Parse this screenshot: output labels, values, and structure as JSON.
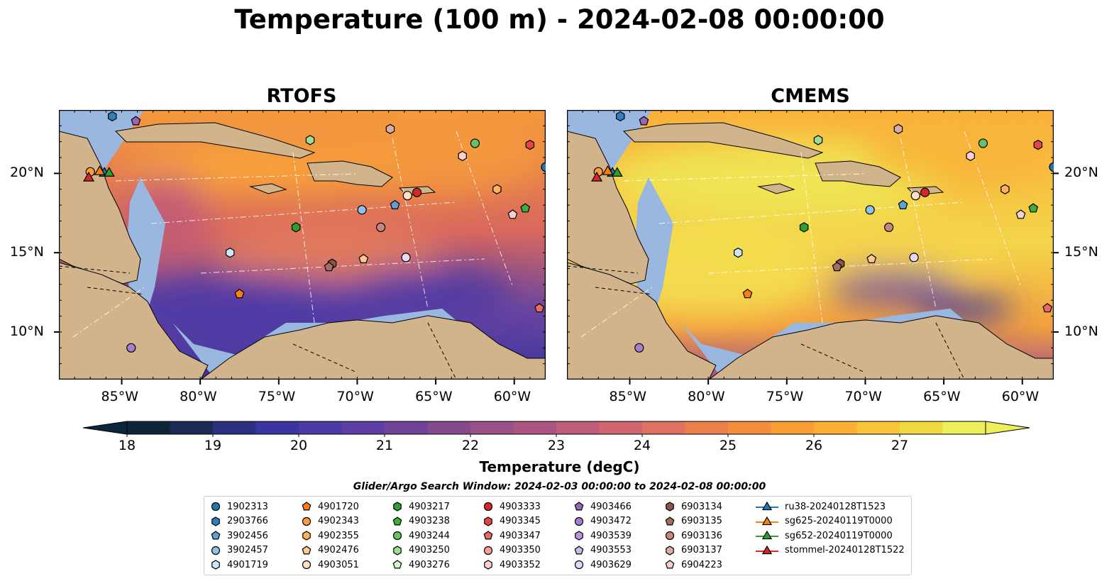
{
  "title": "Temperature (100 m) - 2024-02-08 00:00:00",
  "panels": [
    {
      "title": "RTOFS",
      "palette": "warm"
    },
    {
      "title": "CMEMS",
      "palette": "hot"
    }
  ],
  "axes": {
    "lon_ticks": [
      "85°W",
      "80°W",
      "75°W",
      "70°W",
      "65°W",
      "60°W"
    ],
    "lat_ticks": [
      "20°N",
      "15°N",
      "10°N"
    ]
  },
  "colorbar": {
    "label": "Temperature (degC)",
    "ticks": [
      "18",
      "19",
      "20",
      "21",
      "22",
      "23",
      "24",
      "25",
      "26",
      "27"
    ],
    "colors": [
      "#0d2538",
      "#1b2a52",
      "#2a2f80",
      "#3a35a0",
      "#4b3aa6",
      "#5d3ea5",
      "#704398",
      "#844a8e",
      "#985087",
      "#ab5680",
      "#be5d78",
      "#d06670",
      "#e07060",
      "#ec7e4c",
      "#f58d3c",
      "#f99d35",
      "#fbb035",
      "#f8c43a",
      "#f0d943",
      "#eef05a"
    ]
  },
  "legend": {
    "title": "Glider/Argo Search Window: 2024-02-03 00:00:00 to 2024-02-08 00:00:00",
    "columns": [
      [
        {
          "label": "1902313",
          "marker": "circle",
          "color": "#1f77b4"
        },
        {
          "label": "2903766",
          "marker": "hexagon",
          "color": "#2f7fbf"
        },
        {
          "label": "3902456",
          "marker": "pentagon",
          "color": "#5aa2d8"
        },
        {
          "label": "3902457",
          "marker": "circle",
          "color": "#8cc2ec"
        },
        {
          "label": "4901719",
          "marker": "hexagon",
          "color": "#cde6fb"
        }
      ],
      [
        {
          "label": "4901720",
          "marker": "pentagon",
          "color": "#ff7f0e"
        },
        {
          "label": "4902343",
          "marker": "circle",
          "color": "#ff9a40"
        },
        {
          "label": "4902355",
          "marker": "hexagon",
          "color": "#ffb260"
        },
        {
          "label": "4902476",
          "marker": "pentagon",
          "color": "#ffc891"
        },
        {
          "label": "4903051",
          "marker": "circle",
          "color": "#ffe0c4"
        }
      ],
      [
        {
          "label": "4903217",
          "marker": "hexagon",
          "color": "#2ca02c"
        },
        {
          "label": "4903238",
          "marker": "pentagon",
          "color": "#3fae3f"
        },
        {
          "label": "4903244",
          "marker": "circle",
          "color": "#66c266"
        },
        {
          "label": "4903250",
          "marker": "hexagon",
          "color": "#9bdc96"
        },
        {
          "label": "4903276",
          "marker": "pentagon",
          "color": "#d2f3cf"
        }
      ],
      [
        {
          "label": "4903333",
          "marker": "circle",
          "color": "#d62728"
        },
        {
          "label": "4903345",
          "marker": "hexagon",
          "color": "#e04848"
        },
        {
          "label": "4903347",
          "marker": "pentagon",
          "color": "#ea6868"
        },
        {
          "label": "4903350",
          "marker": "circle",
          "color": "#f5a09d"
        },
        {
          "label": "4903352",
          "marker": "hexagon",
          "color": "#fbd1cf"
        }
      ],
      [
        {
          "label": "4903466",
          "marker": "pentagon",
          "color": "#9467bd"
        },
        {
          "label": "4903472",
          "marker": "circle",
          "color": "#a57fcc"
        },
        {
          "label": "4903539",
          "marker": "hexagon",
          "color": "#b798db"
        },
        {
          "label": "4903553",
          "marker": "pentagon",
          "color": "#cfb9e9"
        },
        {
          "label": "4903629",
          "marker": "circle",
          "color": "#e6d7f6"
        }
      ],
      [
        {
          "label": "6903134",
          "marker": "hexagon",
          "color": "#8c564b"
        },
        {
          "label": "6903135",
          "marker": "pentagon",
          "color": "#a66e63"
        },
        {
          "label": "6903136",
          "marker": "circle",
          "color": "#c08a80"
        },
        {
          "label": "6903137",
          "marker": "hexagon",
          "color": "#d8aca3"
        },
        {
          "label": "6904223",
          "marker": "pentagon",
          "color": "#f1d3ce"
        }
      ],
      [
        {
          "label": "ru38-20240128T1523",
          "marker": "triangle-line",
          "color": "#1f77b4"
        },
        {
          "label": "sg625-20240119T0000",
          "marker": "triangle-line",
          "color": "#ff7f0e"
        },
        {
          "label": "sg652-20240119T0000",
          "marker": "triangle-line",
          "color": "#2ca02c"
        },
        {
          "label": "stommel-20240128T1522",
          "marker": "triangle-line",
          "color": "#d62728"
        }
      ]
    ]
  },
  "chart_data": {
    "type": "heatmap",
    "title": "Temperature (100 m) - 2024-02-08 00:00:00",
    "subplots": [
      "RTOFS",
      "CMEMS"
    ],
    "xlim": [
      -89,
      -58
    ],
    "ylim": [
      7,
      24
    ],
    "colorbar_range": [
      18,
      27
    ],
    "colorbar_label": "Temperature (degC)",
    "land_color": "#d2b48c",
    "shelf_color": "#9ab7e0",
    "markers": [
      {
        "id": "1902313",
        "lon": -58.0,
        "lat": 20.4
      },
      {
        "id": "2903766",
        "lon": -85.6,
        "lat": 23.6
      },
      {
        "id": "3902456",
        "lon": -67.6,
        "lat": 18.0
      },
      {
        "id": "3902457",
        "lon": -69.7,
        "lat": 17.7
      },
      {
        "id": "4901719",
        "lon": -78.1,
        "lat": 15.0
      },
      {
        "id": "4901720",
        "lon": -77.5,
        "lat": 12.4
      },
      {
        "id": "4902343",
        "lon": -87.0,
        "lat": 20.1
      },
      {
        "id": "4903051",
        "lon": -66.8,
        "lat": 18.6
      },
      {
        "id": "4903217",
        "lon": -73.9,
        "lat": 16.6
      },
      {
        "id": "4903238",
        "lon": -59.3,
        "lat": 17.8
      },
      {
        "id": "4903244",
        "lon": -62.5,
        "lat": 21.9
      },
      {
        "id": "4903250",
        "lon": -73.0,
        "lat": 22.1
      },
      {
        "id": "4903333",
        "lon": -66.2,
        "lat": 18.8
      },
      {
        "id": "4903345",
        "lon": -59.0,
        "lat": 21.8
      },
      {
        "id": "4903347",
        "lon": -58.4,
        "lat": 11.5
      },
      {
        "id": "4903466",
        "lon": -84.1,
        "lat": 23.3
      },
      {
        "id": "4903472",
        "lon": -84.4,
        "lat": 9.0
      },
      {
        "id": "4903629",
        "lon": -66.9,
        "lat": 14.7
      },
      {
        "id": "6903134",
        "lon": -71.6,
        "lat": 14.3
      },
      {
        "id": "6903135",
        "lon": -71.8,
        "lat": 14.1
      },
      {
        "id": "6903136",
        "lon": -68.5,
        "lat": 16.6
      },
      {
        "id": "6903137",
        "lon": -67.9,
        "lat": 22.8
      },
      {
        "id": "6904223",
        "lon": -60.1,
        "lat": 17.4
      },
      {
        "id": "4902355",
        "lon": -61.1,
        "lat": 19.0
      },
      {
        "id": "4903352",
        "lon": -63.3,
        "lat": 21.1
      },
      {
        "id": "4902476",
        "lon": -69.6,
        "lat": 14.6
      },
      {
        "id": "ru38-20240128T1523",
        "lon": -86.1,
        "lat": 20.0
      },
      {
        "id": "sg625-20240119T0000",
        "lon": -86.4,
        "lat": 20.1
      },
      {
        "id": "sg652-20240119T0000",
        "lon": -85.8,
        "lat": 20.0
      },
      {
        "id": "stommel-20240128T1522",
        "lon": -87.1,
        "lat": 19.7
      }
    ]
  }
}
